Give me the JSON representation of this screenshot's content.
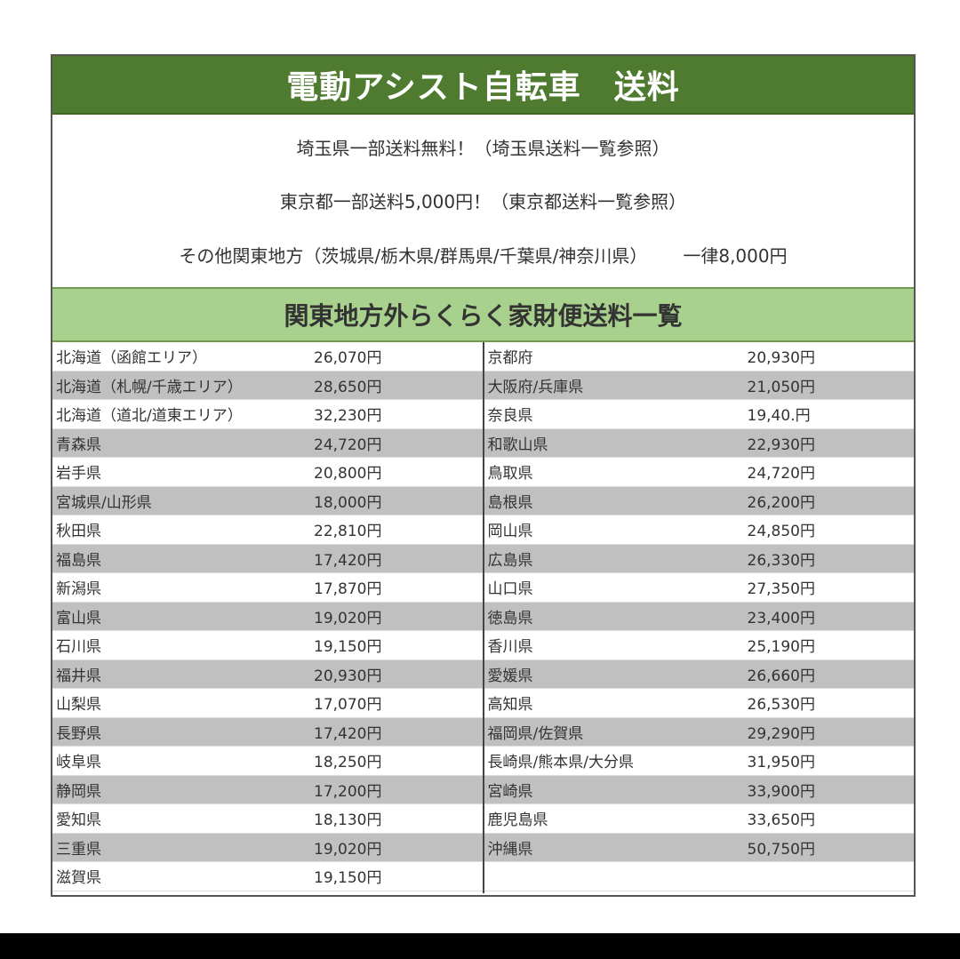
{
  "title": "電動アシスト自転車　送料",
  "info": {
    "line1": "埼玉県一部送料無料！（埼玉県送料一覧参照）",
    "line2": "東京都一部送料5,000円！（東京都送料一覧参照）",
    "line3_label": "その他関東地方（茨城県/栃木県/群馬県/千葉県/神奈川県）",
    "line3_price": "一律8,000円"
  },
  "section_title": "関東地方外らくらく家財便送料一覧",
  "left_rows": [
    {
      "name": "北海道（函館エリア）",
      "price": "26,070円"
    },
    {
      "name": "北海道（札幌/千歳エリア）",
      "price": "28,650円"
    },
    {
      "name": "北海道（道北/道東エリア）",
      "price": "32,230円"
    },
    {
      "name": "青森県",
      "price": "24,720円"
    },
    {
      "name": "岩手県",
      "price": "20,800円"
    },
    {
      "name": "宮城県/山形県",
      "price": "18,000円"
    },
    {
      "name": "秋田県",
      "price": "22,810円"
    },
    {
      "name": "福島県",
      "price": "17,420円"
    },
    {
      "name": "新潟県",
      "price": "17,870円"
    },
    {
      "name": "富山県",
      "price": "19,020円"
    },
    {
      "name": "石川県",
      "price": "19,150円"
    },
    {
      "name": "福井県",
      "price": "20,930円"
    },
    {
      "name": "山梨県",
      "price": "17,070円"
    },
    {
      "name": "長野県",
      "price": "17,420円"
    },
    {
      "name": "岐阜県",
      "price": "18,250円"
    },
    {
      "name": "静岡県",
      "price": "17,200円"
    },
    {
      "name": "愛知県",
      "price": "18,130円"
    },
    {
      "name": "三重県",
      "price": "19,020円"
    },
    {
      "name": "滋賀県",
      "price": "19,150円"
    }
  ],
  "right_rows": [
    {
      "name": "京都府",
      "price": "20,930円"
    },
    {
      "name": "大阪府/兵庫県",
      "price": "21,050円"
    },
    {
      "name": "奈良県",
      "price": "19,40.円"
    },
    {
      "name": "和歌山県",
      "price": "22,930円"
    },
    {
      "name": "鳥取県",
      "price": "24,720円"
    },
    {
      "name": "島根県",
      "price": "26,200円"
    },
    {
      "name": "岡山県",
      "price": "24,850円"
    },
    {
      "name": "広島県",
      "price": "26,330円"
    },
    {
      "name": "山口県",
      "price": "27,350円"
    },
    {
      "name": "徳島県",
      "price": "23,400円"
    },
    {
      "name": "香川県",
      "price": "25,190円"
    },
    {
      "name": "愛媛県",
      "price": "26,660円"
    },
    {
      "name": "高知県",
      "price": "26,530円"
    },
    {
      "name": "福岡県/佐賀県",
      "price": "29,290円"
    },
    {
      "name": "長崎県/熊本県/大分県",
      "price": "31,950円"
    },
    {
      "name": "宮崎県",
      "price": "33,900円"
    },
    {
      "name": "鹿児島県",
      "price": "33,650円"
    },
    {
      "name": "沖縄県",
      "price": "50,750円"
    },
    {
      "name": "",
      "price": ""
    }
  ],
  "colors": {
    "title_bg": "#4f7b30",
    "section_bg": "#a9d18e",
    "row_alt": "#c0c0c0"
  }
}
